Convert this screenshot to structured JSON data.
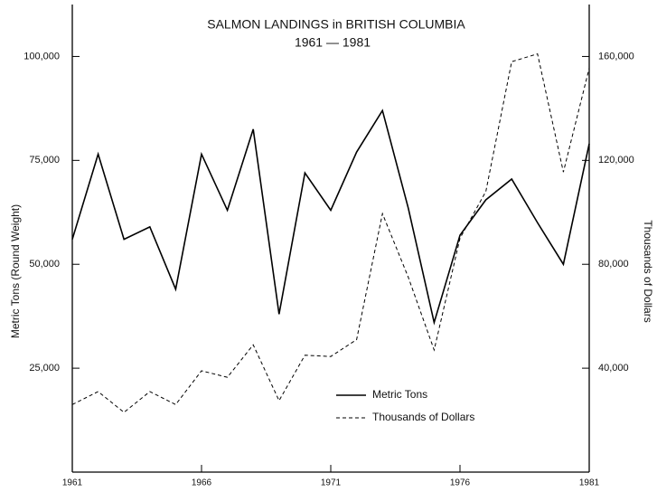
{
  "chart_data": {
    "type": "line",
    "title": "SALMON LANDINGS in BRITISH COLUMBIA",
    "subtitle": "1961 — 1981",
    "y_label": "Metric Tons  (Round Weight)",
    "y2_label": "Thousands of Dollars",
    "x": [
      1961,
      1962,
      1963,
      1964,
      1965,
      1966,
      1967,
      1968,
      1969,
      1970,
      1971,
      1972,
      1973,
      1974,
      1975,
      1976,
      1977,
      1978,
      1979,
      1980,
      1981
    ],
    "series": [
      {
        "name": "Metric Tons",
        "color": "#000000",
        "style": "solid",
        "values": [
          56000,
          76500,
          56000,
          59000,
          44000,
          76500,
          63000,
          82500,
          38000,
          72000,
          63000,
          77000,
          87000,
          63500,
          36000,
          57000,
          65500,
          70500,
          60000,
          50000,
          79000
        ]
      },
      {
        "name": "Thousands of Dollars",
        "color": "#000000",
        "style": "dashed",
        "axis": "y2",
        "values": [
          26000,
          31000,
          23000,
          31000,
          26000,
          39000,
          36500,
          49000,
          27500,
          45000,
          44500,
          51000,
          99500,
          75000,
          47000,
          90000,
          108000,
          158000,
          161000,
          115500,
          155500
        ]
      }
    ],
    "xlim": [
      1961,
      1981
    ],
    "xticks": [
      1961,
      1966,
      1971,
      1976,
      1981
    ],
    "ylim": [
      0,
      112500
    ],
    "yticks": [
      {
        "value": 25000,
        "label": "25,000"
      },
      {
        "value": 50000,
        "label": "50,000"
      },
      {
        "value": 75000,
        "label": "75,000"
      },
      {
        "value": 100000,
        "label": "100,000"
      }
    ],
    "y2lim": [
      0,
      180000
    ],
    "y2ticks": [
      {
        "value": 40000,
        "label": "40,000"
      },
      {
        "value": 80000,
        "label": "80,000"
      },
      {
        "value": 120000,
        "label": "120,000"
      },
      {
        "value": 160000,
        "label": "160,000"
      }
    ],
    "grid": false
  }
}
